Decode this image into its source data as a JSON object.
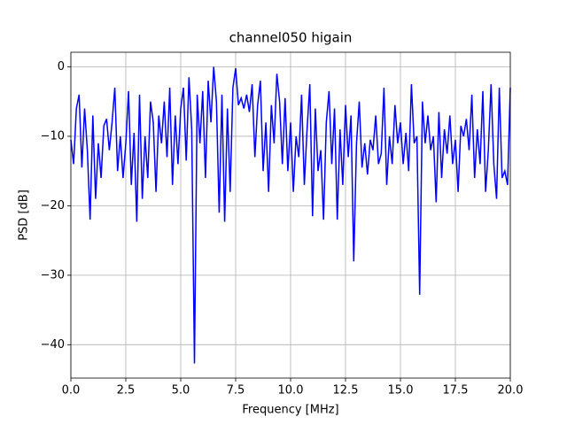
{
  "chart_data": {
    "type": "line",
    "title": "channel050 higain",
    "xlabel": "Frequency [MHz]",
    "ylabel": "PSD [dB]",
    "x": [
      0,
      0.125,
      0.25,
      0.375,
      0.5,
      0.625,
      0.75,
      0.875,
      1,
      1.125,
      1.25,
      1.375,
      1.5,
      1.625,
      1.75,
      1.875,
      2,
      2.125,
      2.25,
      2.375,
      2.5,
      2.625,
      2.75,
      2.875,
      3,
      3.125,
      3.25,
      3.375,
      3.5,
      3.625,
      3.75,
      3.875,
      4,
      4.125,
      4.25,
      4.375,
      4.5,
      4.625,
      4.75,
      4.875,
      5,
      5.125,
      5.25,
      5.375,
      5.5,
      5.625,
      5.75,
      5.875,
      6,
      6.125,
      6.25,
      6.375,
      6.5,
      6.625,
      6.75,
      6.875,
      7,
      7.125,
      7.25,
      7.375,
      7.5,
      7.625,
      7.75,
      7.875,
      8,
      8.125,
      8.25,
      8.375,
      8.5,
      8.625,
      8.75,
      8.875,
      9,
      9.125,
      9.25,
      9.375,
      9.5,
      9.625,
      9.75,
      9.875,
      10,
      10.125,
      10.25,
      10.375,
      10.5,
      10.625,
      10.75,
      10.875,
      11,
      11.125,
      11.25,
      11.375,
      11.5,
      11.625,
      11.75,
      11.875,
      12,
      12.125,
      12.25,
      12.375,
      12.5,
      12.625,
      12.75,
      12.875,
      13,
      13.125,
      13.25,
      13.375,
      13.5,
      13.625,
      13.75,
      13.875,
      14,
      14.125,
      14.25,
      14.375,
      14.5,
      14.625,
      14.75,
      14.875,
      15,
      15.125,
      15.25,
      15.375,
      15.5,
      15.625,
      15.75,
      15.875,
      16,
      16.125,
      16.25,
      16.375,
      16.5,
      16.625,
      16.75,
      16.875,
      17,
      17.125,
      17.25,
      17.375,
      17.5,
      17.625,
      17.75,
      17.875,
      18,
      18.125,
      18.25,
      18.375,
      18.5,
      18.625,
      18.75,
      18.875,
      19,
      19.125,
      19.25,
      19.375,
      19.5,
      19.625,
      19.75,
      19.875,
      20
    ],
    "series": [
      {
        "name": "channel050",
        "color": "#0000ff",
        "values": [
          -10.5,
          -14,
          -6,
          -4,
          -14.5,
          -6,
          -12,
          -22,
          -7,
          -19,
          -11,
          -16,
          -8.5,
          -7.5,
          -12,
          -8,
          -3,
          -15,
          -10,
          -16,
          -11,
          -3.5,
          -17,
          -9.5,
          -22.3,
          -4,
          -19,
          -10,
          -16,
          -5,
          -8,
          -18,
          -7,
          -11,
          -5,
          -13,
          -3,
          -17,
          -7,
          -14,
          -6,
          -3,
          -13.5,
          -1.5,
          -9,
          -42.7,
          -4,
          -11,
          -3.5,
          -16,
          -2,
          -8,
          0,
          -5,
          -21,
          -4,
          -22.3,
          -6,
          -18,
          -3,
          -0.2,
          -5.5,
          -4.5,
          -6,
          -4,
          -6.5,
          -2.5,
          -13,
          -5.5,
          -2,
          -15,
          -8,
          -18,
          -5.5,
          -11,
          -1,
          -5,
          -14,
          -4.5,
          -15,
          -8,
          -18,
          -10,
          -13,
          -4,
          -17,
          -9,
          -2.5,
          -21.5,
          -6,
          -15,
          -12,
          -22,
          -8,
          -3.5,
          -14,
          -6,
          -22,
          -9,
          -17,
          -5.5,
          -13,
          -7,
          -28,
          -11,
          -5,
          -14.5,
          -11,
          -15.5,
          -10.5,
          -12,
          -7,
          -14,
          -12.5,
          -3,
          -17,
          -10,
          -14,
          -5.5,
          -11,
          -8,
          -14,
          -9.5,
          -15,
          -2.5,
          -11,
          -10,
          -32.8,
          -5,
          -11,
          -7,
          -12,
          -10,
          -19.5,
          -6.5,
          -16,
          -9,
          -12.5,
          -7,
          -14,
          -10.5,
          -18,
          -8.5,
          -10,
          -7.5,
          -12,
          -4,
          -16,
          -9,
          -14,
          -3.5,
          -18,
          -12,
          -2.5,
          -14,
          -19,
          -3,
          -16,
          -15,
          -17,
          -3
        ]
      }
    ],
    "xlim": [
      0,
      20
    ],
    "ylim": [
      -44.8,
      2.1
    ],
    "xticks": [
      {
        "value": 0,
        "label": "0.0"
      },
      {
        "value": 2.5,
        "label": "2.5"
      },
      {
        "value": 5,
        "label": "5.0"
      },
      {
        "value": 7.5,
        "label": "7.5"
      },
      {
        "value": 10,
        "label": "10.0"
      },
      {
        "value": 12.5,
        "label": "12.5"
      },
      {
        "value": 15,
        "label": "15.0"
      },
      {
        "value": 17.5,
        "label": "17.5"
      },
      {
        "value": 20,
        "label": "20.0"
      }
    ],
    "yticks": [
      {
        "value": -40,
        "label": "−40"
      },
      {
        "value": -30,
        "label": "−30"
      },
      {
        "value": -20,
        "label": "−20"
      },
      {
        "value": -10,
        "label": "−10"
      },
      0
    ],
    "grid": true
  }
}
